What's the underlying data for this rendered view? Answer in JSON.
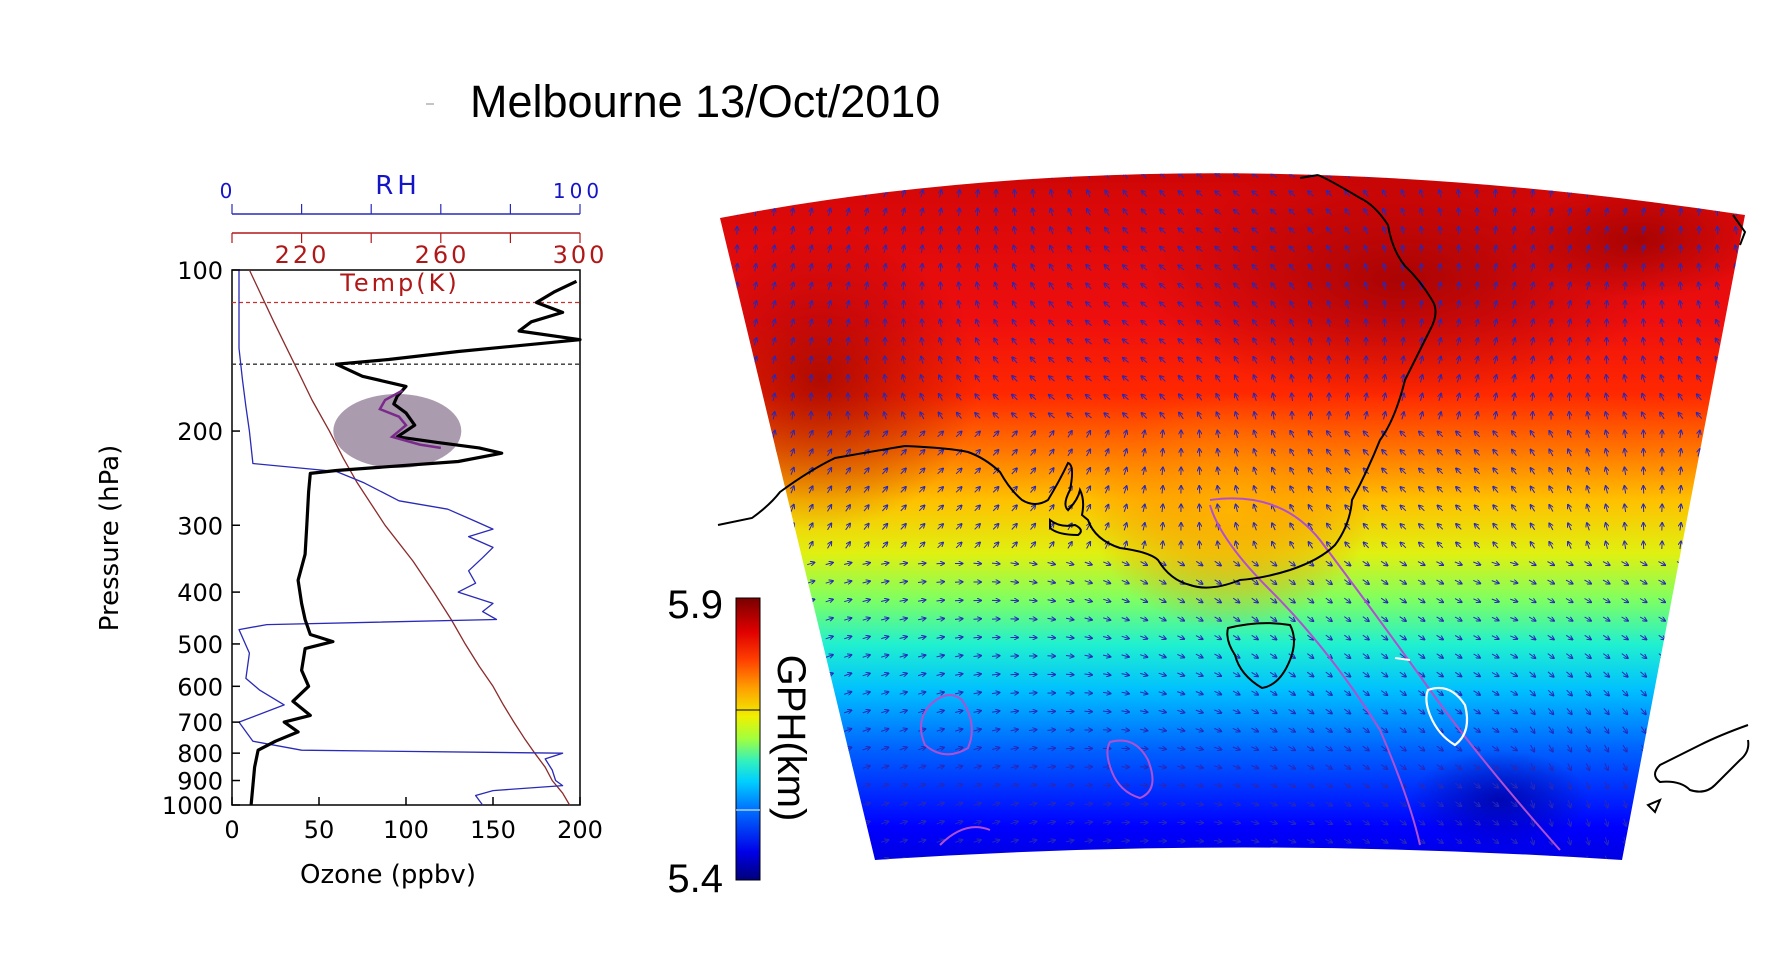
{
  "title": "Melbourne 13/Oct/2010",
  "colors": {
    "ozone": "#000000",
    "rh": "#2a2ab8",
    "temperature": "#8b2b2b",
    "tropopause_upper": "#c83030",
    "tropopause_lower": "#333333",
    "highlight": "#8a7590",
    "wind_arrows": "#2828b8",
    "coastline": "#000000",
    "purple_contour": "#b050d0",
    "white_contour": "#ffffff"
  },
  "chart_data": [
    {
      "type": "line",
      "title": "",
      "xlabel": "Ozone (ppbv)",
      "ylabel": "Pressure (hPa)",
      "xlim": [
        0,
        200
      ],
      "ylim": [
        1000,
        100
      ],
      "yscale": "log",
      "x_ticks": [
        "0",
        "50",
        "100",
        "150",
        "200"
      ],
      "y_ticks": [
        "100",
        "200",
        "300",
        "400",
        "500",
        "600",
        "700",
        "800",
        "900",
        "1000"
      ],
      "secondary_axes": [
        {
          "label": "RH",
          "ticks": [
            "0",
            "100"
          ],
          "range": [
            0,
            100
          ],
          "color": "#2a2ab8"
        },
        {
          "label": "Temp(K)",
          "ticks": [
            "220",
            "260",
            "300"
          ],
          "range": [
            200,
            300
          ],
          "color": "#b01818"
        }
      ],
      "reference_lines_hPa": [
        115,
        150
      ],
      "highlight_region": {
        "x_center": 95,
        "p_center": 200
      },
      "series": [
        {
          "name": "",
          "quantity": "Ozone (ppbv)",
          "points": [
            [
              198,
              105
            ],
            [
              185,
              110
            ],
            [
              175,
              115
            ],
            [
              190,
              120
            ],
            [
              172,
              125
            ],
            [
              165,
              130
            ],
            [
              200,
              135
            ],
            [
              130,
              142
            ],
            [
              90,
              147
            ],
            [
              60,
              150
            ],
            [
              75,
              158
            ],
            [
              100,
              165
            ],
            [
              95,
              172
            ],
            [
              93,
              178
            ],
            [
              100,
              185
            ],
            [
              105,
              195
            ],
            [
              95,
              205
            ],
            [
              118,
              210
            ],
            [
              142,
              215
            ],
            [
              155,
              220
            ],
            [
              130,
              228
            ],
            [
              60,
              237
            ],
            [
              45,
              240
            ],
            [
              44,
              260
            ],
            [
              43,
              300
            ],
            [
              42,
              340
            ],
            [
              38,
              380
            ],
            [
              40,
              420
            ],
            [
              42,
              450
            ],
            [
              45,
              480
            ],
            [
              58,
              495
            ],
            [
              42,
              510
            ],
            [
              40,
              560
            ],
            [
              44,
              600
            ],
            [
              35,
              640
            ],
            [
              45,
              680
            ],
            [
              30,
              700
            ],
            [
              38,
              730
            ],
            [
              25,
              760
            ],
            [
              15,
              790
            ],
            [
              13,
              850
            ],
            [
              12,
              920
            ],
            [
              11,
              1000
            ]
          ]
        },
        {
          "name": "",
          "quantity": "RH",
          "points": [
            [
              2,
              100
            ],
            [
              2,
              140
            ],
            [
              3,
              160
            ],
            [
              4,
              180
            ],
            [
              5,
              200
            ],
            [
              6,
              230
            ],
            [
              30,
              238
            ],
            [
              38,
              250
            ],
            [
              48,
              270
            ],
            [
              62,
              280
            ],
            [
              70,
              295
            ],
            [
              75,
              305
            ],
            [
              68,
              315
            ],
            [
              75,
              330
            ],
            [
              72,
              345
            ],
            [
              68,
              365
            ],
            [
              70,
              385
            ],
            [
              65,
              400
            ],
            [
              75,
              420
            ],
            [
              72,
              435
            ],
            [
              76,
              450
            ],
            [
              10,
              460
            ],
            [
              2,
              470
            ],
            [
              5,
              520
            ],
            [
              4,
              580
            ],
            [
              8,
              610
            ],
            [
              15,
              650
            ],
            [
              2,
              700
            ],
            [
              6,
              760
            ],
            [
              20,
              790
            ],
            [
              95,
              800
            ],
            [
              90,
              820
            ],
            [
              92,
              860
            ],
            [
              93,
              900
            ],
            [
              95,
              920
            ],
            [
              75,
              940
            ],
            [
              70,
              960
            ],
            [
              72,
              1000
            ]
          ]
        },
        {
          "name": "",
          "quantity": "Temp(K)",
          "points": [
            [
              205,
              100
            ],
            [
              212,
              125
            ],
            [
              218,
              150
            ],
            [
              223,
              175
            ],
            [
              228,
              200
            ],
            [
              232,
              225
            ],
            [
              236,
              250
            ],
            [
              244,
              300
            ],
            [
              252,
              350
            ],
            [
              258,
              400
            ],
            [
              263,
              450
            ],
            [
              267,
              500
            ],
            [
              271,
              550
            ],
            [
              275,
              600
            ],
            [
              278,
              650
            ],
            [
              281,
              700
            ],
            [
              284,
              750
            ],
            [
              287,
              800
            ],
            [
              290,
              850
            ],
            [
              292,
              900
            ],
            [
              295,
              950
            ],
            [
              297,
              1000
            ]
          ]
        }
      ]
    },
    {
      "type": "heatmap",
      "title": "",
      "colorbar_label": "GPH(km)",
      "colorbar_range": [
        5.4,
        5.9
      ],
      "colorbar_ticks": [
        "5.9",
        "5.4"
      ],
      "colormap": [
        "#00007a",
        "#0000e8",
        "#0050ff",
        "#00b0ff",
        "#00e8e8",
        "#40f0a0",
        "#a0ff40",
        "#f0f000",
        "#ffb000",
        "#ff6000",
        "#f01010",
        "#c00000",
        "#7a0000"
      ],
      "overlays": [
        "wind_vectors",
        "coastline",
        "contours"
      ]
    }
  ]
}
